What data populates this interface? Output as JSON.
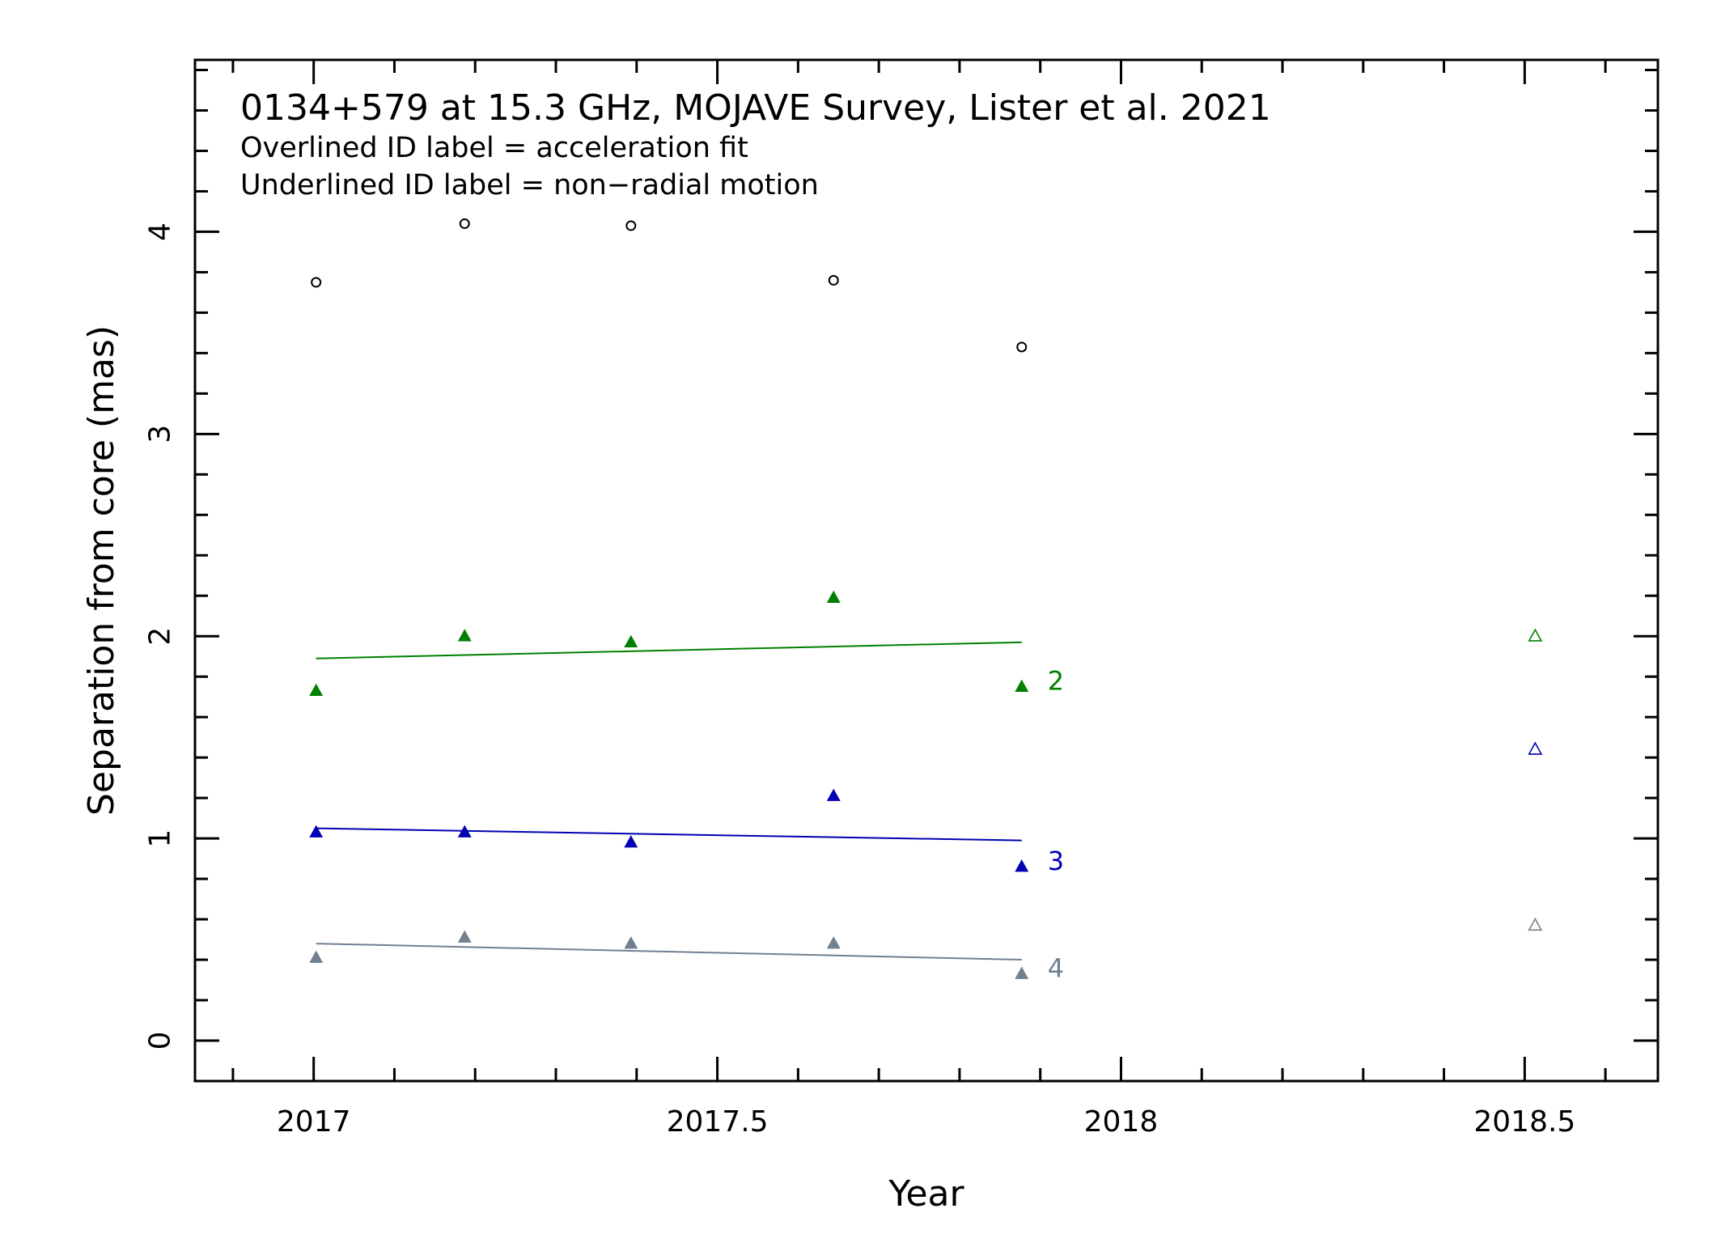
{
  "chart_data": {
    "type": "scatter",
    "title": "0134+579 at 15.3 GHz, MOJAVE Survey, Lister et al. 2021",
    "subtitle_lines": [
      "Overlined ID label = acceleration fit",
      "Underlined ID label = non−radial motion"
    ],
    "xlabel": "Year",
    "ylabel": "Separation from core (mas)",
    "xlim": [
      2016.853,
      2018.665
    ],
    "ylim": [
      -0.2,
      4.85
    ],
    "x_ticks": [
      2017,
      2017.5,
      2018,
      2018.5
    ],
    "x_tick_labels": [
      "2017",
      "2017.5",
      "2018",
      "2018.5"
    ],
    "y_ticks": [
      0,
      1,
      2,
      3,
      4
    ],
    "y_tick_labels": [
      "0",
      "1",
      "2",
      "3",
      "4"
    ],
    "grid": false,
    "legend": "none",
    "series": [
      {
        "id": "core-region",
        "label": "",
        "color": "#000000",
        "marker": "circle-open",
        "x": [
          2017.003,
          2017.187,
          2017.393,
          2017.644,
          2017.877
        ],
        "y": [
          3.75,
          4.04,
          4.03,
          3.76,
          3.43
        ],
        "fit": null,
        "extra_points": []
      },
      {
        "id": "component-2",
        "label": "2",
        "color": "#008000",
        "marker": "triangle-filled",
        "x": [
          2017.003,
          2017.187,
          2017.393,
          2017.644,
          2017.877
        ],
        "y": [
          1.73,
          2.0,
          1.97,
          2.19,
          1.75
        ],
        "fit": {
          "x": [
            2017.003,
            2017.877
          ],
          "y": [
            1.89,
            1.97
          ]
        },
        "extra_points": [
          {
            "x": 2018.513,
            "y": 2.0,
            "marker": "triangle-open"
          }
        ]
      },
      {
        "id": "component-3",
        "label": "3",
        "color": "#0000b4",
        "marker": "triangle-filled",
        "x": [
          2017.003,
          2017.187,
          2017.393,
          2017.644,
          2017.877
        ],
        "y": [
          1.03,
          1.03,
          0.98,
          1.21,
          0.86
        ],
        "fit": {
          "x": [
            2017.003,
            2017.877
          ],
          "y": [
            1.05,
            0.99
          ]
        },
        "extra_points": [
          {
            "x": 2018.513,
            "y": 1.44,
            "marker": "triangle-open"
          }
        ]
      },
      {
        "id": "component-4",
        "label": "4",
        "color": "#708090",
        "marker": "triangle-filled",
        "x": [
          2017.003,
          2017.187,
          2017.393,
          2017.644,
          2017.877
        ],
        "y": [
          0.41,
          0.51,
          0.48,
          0.48,
          0.33
        ],
        "fit": {
          "x": [
            2017.003,
            2017.877
          ],
          "y": [
            0.48,
            0.4
          ]
        },
        "extra_points": [
          {
            "x": 2018.513,
            "y": 0.57,
            "marker": "triangle-open"
          }
        ]
      }
    ]
  }
}
